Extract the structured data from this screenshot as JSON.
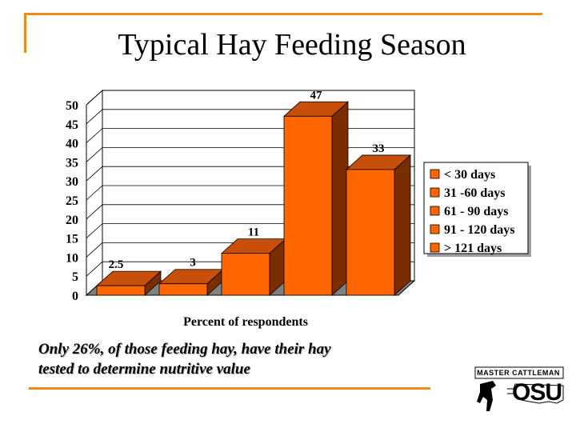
{
  "slide": {
    "title": "Typical Hay Feeding Season",
    "caption_line1": "Only 26%, of those feeding hay, have their hay",
    "caption_line2": "tested to determine nutritive value",
    "logo_text": "Master Cattleman",
    "logo_mark": "OSU"
  },
  "colors": {
    "accent_rule": "#f08a1c",
    "bar_front": "#ff6600",
    "bar_top": "#c84f0a",
    "bar_side": "#7a2e00",
    "floor": "#808080"
  },
  "chart_data": {
    "type": "bar",
    "title": "",
    "xlabel": "Percent of respondents",
    "ylabel": "",
    "ylim": [
      0,
      50
    ],
    "yticks": [
      "0",
      "5",
      "10",
      "15",
      "20",
      "25",
      "30",
      "35",
      "40",
      "45",
      "50"
    ],
    "categories": [
      "< 30 days",
      "31 -60 days",
      "61 - 90 days",
      "91 - 120 days",
      "> 121 days"
    ],
    "values": [
      2.5,
      3,
      11,
      47,
      33
    ],
    "value_labels": [
      "2.5",
      "3",
      "11",
      "47",
      "33"
    ],
    "legend_position": "right",
    "grid": true
  }
}
